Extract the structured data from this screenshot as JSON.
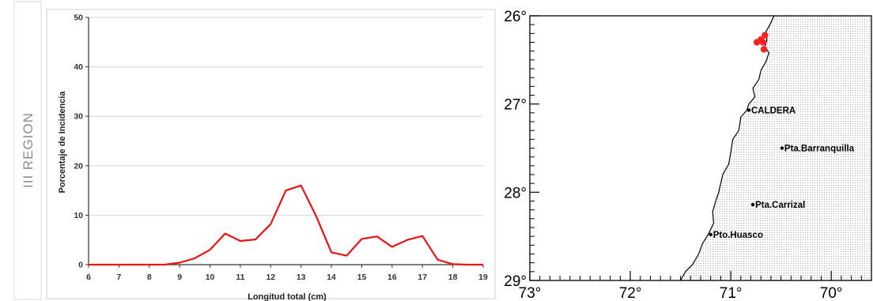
{
  "side_label": "III REGION",
  "chart_data": [
    {
      "type": "line",
      "title": "",
      "xlabel": "Longitud total (cm)",
      "ylabel": "Porcentaje de Incidencia",
      "xlim": [
        6,
        19
      ],
      "ylim": [
        0,
        50
      ],
      "xticks": [
        6,
        7,
        8,
        9,
        10,
        11,
        12,
        13,
        14,
        15,
        16,
        17,
        18,
        19
      ],
      "yticks": [
        0,
        10,
        20,
        30,
        40,
        50
      ],
      "grid": "horizontal",
      "line_color": "#ee1111",
      "series": [
        {
          "x": [
            6,
            6.5,
            7,
            7.5,
            8,
            8.5,
            9,
            9.5,
            10,
            10.5,
            11,
            11.5,
            12,
            12.5,
            13,
            13.5,
            14,
            14.5,
            15,
            15.5,
            16,
            16.5,
            17,
            17.5,
            18,
            18.5,
            19
          ],
          "values": [
            0,
            0,
            0,
            0,
            0,
            0,
            0.4,
            1.3,
            3,
            6.3,
            4.8,
            5.1,
            8.2,
            15,
            16,
            9.8,
            2.5,
            1.8,
            5.2,
            5.7,
            3.6,
            5,
            5.8,
            1,
            0.1,
            0,
            0
          ]
        }
      ]
    },
    {
      "type": "scatter",
      "title": "",
      "xlabel": "",
      "ylabel": "",
      "xlim": [
        73,
        69.6
      ],
      "ylim": [
        29,
        26
      ],
      "xticks": [
        73,
        72,
        71,
        70
      ],
      "yticks": [
        26,
        27,
        28,
        29
      ],
      "xtick_labels": [
        "73°",
        "72°",
        "71°",
        "70°"
      ],
      "ytick_labels": [
        "26°",
        "27°",
        "28°",
        "29°"
      ],
      "places": [
        {
          "name": "CALDERA",
          "lon": 70.82,
          "lat": 27.07
        },
        {
          "name": "Pta.Barranquilla",
          "lon": 70.49,
          "lat": 27.5
        },
        {
          "name": "Pta.Carrizal",
          "lon": 70.78,
          "lat": 28.14
        },
        {
          "name": "Pto.Huasco",
          "lon": 71.2,
          "lat": 28.48
        }
      ],
      "samples": {
        "color": "#ff2020",
        "points": [
          {
            "lon": 70.66,
            "lat": 26.22
          },
          {
            "lon": 70.7,
            "lat": 26.27
          },
          {
            "lon": 70.74,
            "lat": 26.3
          },
          {
            "lon": 70.68,
            "lat": 26.3
          },
          {
            "lon": 70.67,
            "lat": 26.38
          }
        ]
      },
      "coastline": [
        [
          70.57,
          26.0
        ],
        [
          70.61,
          26.1
        ],
        [
          70.66,
          26.2
        ],
        [
          70.64,
          26.27
        ],
        [
          70.66,
          26.35
        ],
        [
          70.62,
          26.42
        ],
        [
          70.65,
          26.52
        ],
        [
          70.7,
          26.62
        ],
        [
          70.72,
          26.72
        ],
        [
          70.78,
          26.82
        ],
        [
          70.76,
          26.92
        ],
        [
          70.82,
          27.0
        ],
        [
          70.84,
          27.07
        ],
        [
          70.9,
          27.15
        ],
        [
          70.92,
          27.3
        ],
        [
          70.98,
          27.4
        ],
        [
          71.0,
          27.55
        ],
        [
          71.02,
          27.68
        ],
        [
          71.08,
          27.8
        ],
        [
          71.1,
          27.9
        ],
        [
          71.12,
          28.0
        ],
        [
          71.15,
          28.1
        ],
        [
          71.18,
          28.22
        ],
        [
          71.17,
          28.35
        ],
        [
          71.22,
          28.47
        ],
        [
          71.28,
          28.58
        ],
        [
          71.32,
          28.7
        ],
        [
          71.38,
          28.82
        ],
        [
          71.45,
          28.9
        ],
        [
          71.5,
          29.0
        ]
      ],
      "land_side": "east",
      "land_color": "#999999"
    }
  ]
}
